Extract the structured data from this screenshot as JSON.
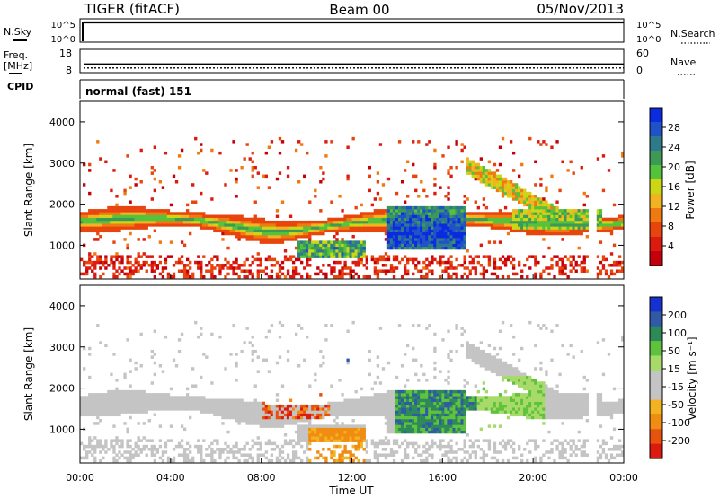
{
  "header": {
    "station": "TIGER (fitACF)",
    "beam": "Beam 00",
    "date": "05/Nov/2013"
  },
  "chart_data": [
    {
      "type": "line",
      "panel": "sky-noise",
      "left_label": "N.Sky",
      "right_label": "N.Search",
      "left_ticks": [
        "10^5",
        "10^0"
      ],
      "right_ticks": [
        "10^5",
        "10^0"
      ],
      "scale": "log",
      "ylim": [
        1,
        100000
      ]
    },
    {
      "type": "line",
      "panel": "frequency",
      "left_label": "Freq.",
      "left_unit": "[MHz]",
      "right_label": "Nave",
      "left_ticks": [
        "18",
        "8"
      ],
      "right_ticks": [
        "60",
        "0"
      ],
      "freq_ylim": [
        8,
        18
      ],
      "nave_ylim": [
        0,
        60
      ],
      "freq_value": 11.6,
      "nave_value": 12
    },
    {
      "type": "table",
      "panel": "cpid",
      "label": "CPID",
      "program": "normal (fast) 151"
    },
    {
      "type": "heatmap",
      "panel": "power",
      "ylabel": "Slant Range [km]",
      "ylim": [
        180,
        4500
      ],
      "y_ticks": [
        "4000",
        "3000",
        "2000",
        "1000"
      ],
      "colorbar_label": "Power [dB]",
      "colorbar_ticks": [
        "28",
        "24",
        "20",
        "16",
        "12",
        "8",
        "4"
      ],
      "colorbar_colors": [
        "#0a2be0",
        "#1f52c8",
        "#2f7a8a",
        "#3c9a56",
        "#55c23c",
        "#cdd614",
        "#f2b320",
        "#f07a12",
        "#e8450e",
        "#dd1a10",
        "#c4000a"
      ]
    },
    {
      "type": "heatmap",
      "panel": "velocity",
      "ylabel": "Slant Range [km]",
      "ylim": [
        180,
        4500
      ],
      "y_ticks": [
        "4000",
        "3000",
        "2000",
        "1000"
      ],
      "colorbar_label": "Velocity [m s⁻¹]",
      "colorbar_ticks": [
        "200",
        "100",
        "50",
        "15",
        "-15",
        "-50",
        "-100",
        "-200"
      ],
      "colorbar_colors": [
        "#1730d0",
        "#2f5aa8",
        "#2d8a58",
        "#5fc23c",
        "#a8da6a",
        "#c4c4c4",
        "#c4c4c4",
        "#f2b320",
        "#f08c12",
        "#e8520e",
        "#dc1a10"
      ],
      "xlabel": "Time UT",
      "x_ticks": [
        "00:00",
        "04:00",
        "08:00",
        "12:00",
        "16:00",
        "20:00",
        "00:00"
      ],
      "xlim": [
        0,
        24
      ]
    }
  ]
}
